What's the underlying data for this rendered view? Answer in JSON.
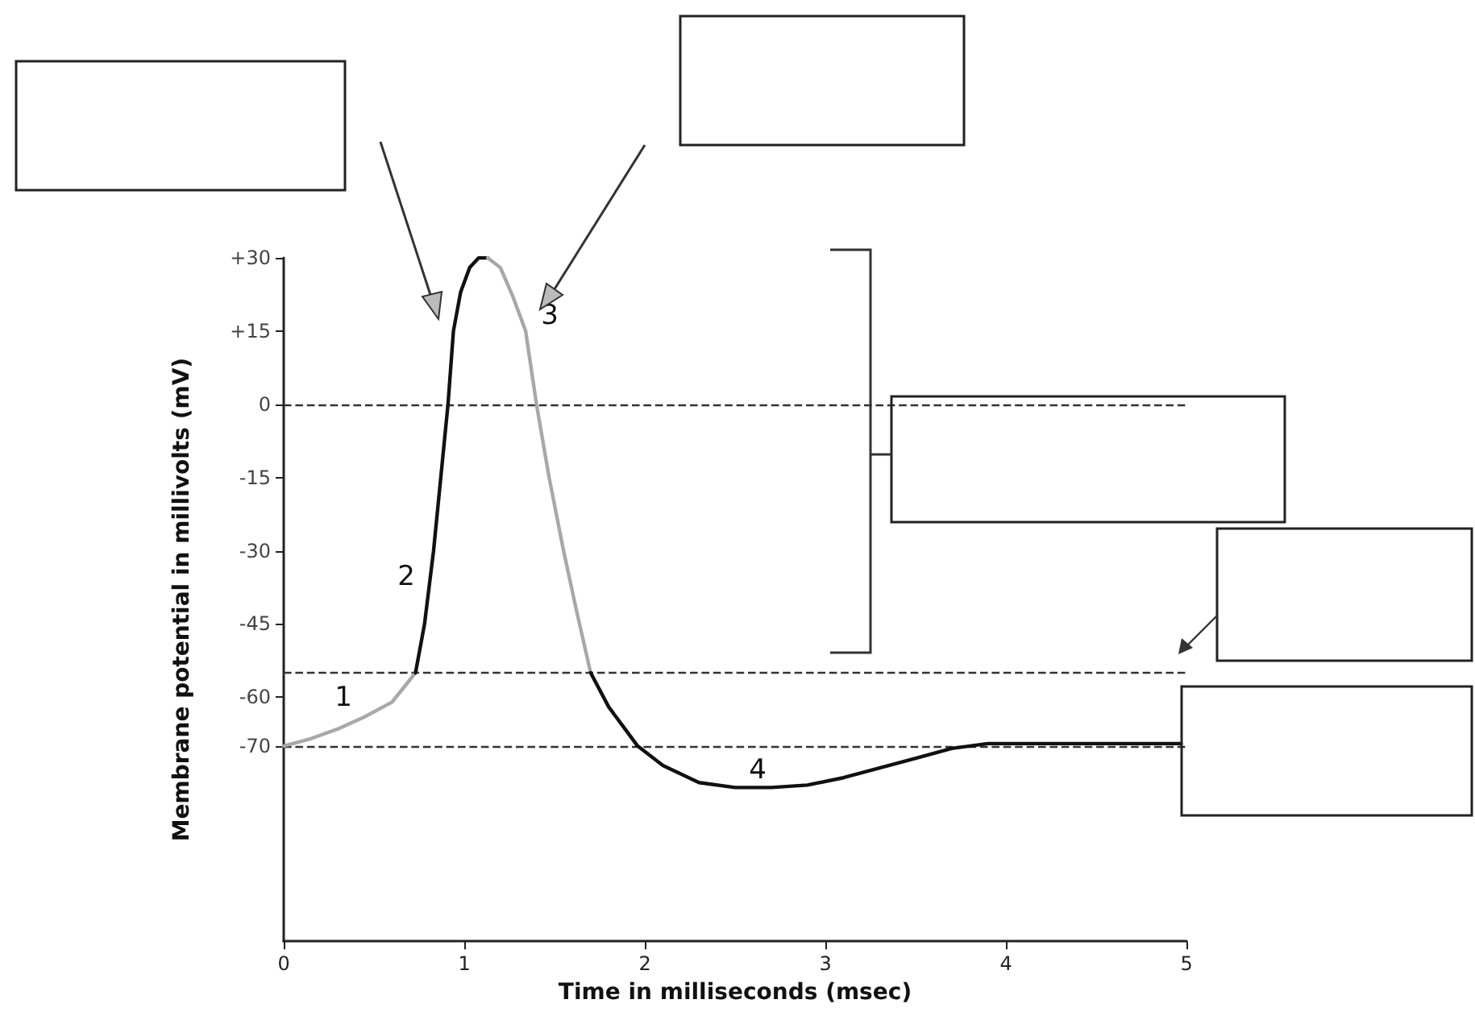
{
  "chart_data": {
    "type": "line",
    "xlabel": "Time in milliseconds (msec)",
    "ylabel": "Membrane potential in millivolts (mV)",
    "xlim": [
      0,
      5
    ],
    "xticks": [
      0,
      1,
      2,
      3,
      4,
      5
    ],
    "ylim": [
      -110,
      30
    ],
    "yticks": [
      {
        "value": 30,
        "label": "+30"
      },
      {
        "value": 15,
        "label": "+15"
      },
      0,
      -15,
      -30,
      -45,
      -60,
      -70
    ],
    "grid": false,
    "marker": "none",
    "line_style": "solid",
    "series": [
      {
        "color": "#a8a8a8",
        "x": [
          0,
          0.15,
          0.3,
          0.45,
          0.6,
          0.73
        ],
        "values": [
          -70,
          -68.5,
          -66.5,
          -64,
          -61,
          -55
        ]
      },
      {
        "color": "#111111",
        "x": [
          0.73,
          0.78,
          0.83,
          0.87,
          0.91,
          0.94,
          0.98,
          1.03,
          1.08,
          1.13
        ],
        "values": [
          -55,
          -45,
          -30,
          -15,
          0,
          15,
          23,
          28,
          30,
          30
        ]
      },
      {
        "color": "#a8a8a8",
        "x": [
          1.13,
          1.2,
          1.27,
          1.34,
          1.4,
          1.47,
          1.55,
          1.62,
          1.7
        ],
        "values": [
          30,
          28,
          22,
          15,
          0,
          -15,
          -30,
          -42,
          -55
        ]
      },
      {
        "color": "#111111",
        "x": [
          1.7,
          1.8,
          1.9,
          1.96,
          2.1,
          2.3,
          2.5,
          2.7,
          2.9,
          3.1,
          3.3,
          3.5,
          3.7,
          3.9,
          4.2,
          4.6,
          4.97
        ],
        "values": [
          -55,
          -62,
          -67,
          -70,
          -74,
          -77.5,
          -78.5,
          -78.5,
          -78,
          -76.5,
          -74.5,
          -72.5,
          -70.5,
          -69.5,
          -69.5,
          -69.5,
          -69.5
        ]
      }
    ],
    "ref_lines": [
      {
        "axis": "y",
        "value": 0,
        "color": "#333333",
        "line_style": "dashed"
      },
      {
        "axis": "y",
        "value": -55,
        "color": "#333333",
        "line_style": "dashed"
      },
      {
        "axis": "y",
        "value": -70,
        "color": "#333333",
        "line_style": "dashed"
      }
    ],
    "annotations": [
      "1",
      "2",
      "3",
      "4"
    ]
  }
}
